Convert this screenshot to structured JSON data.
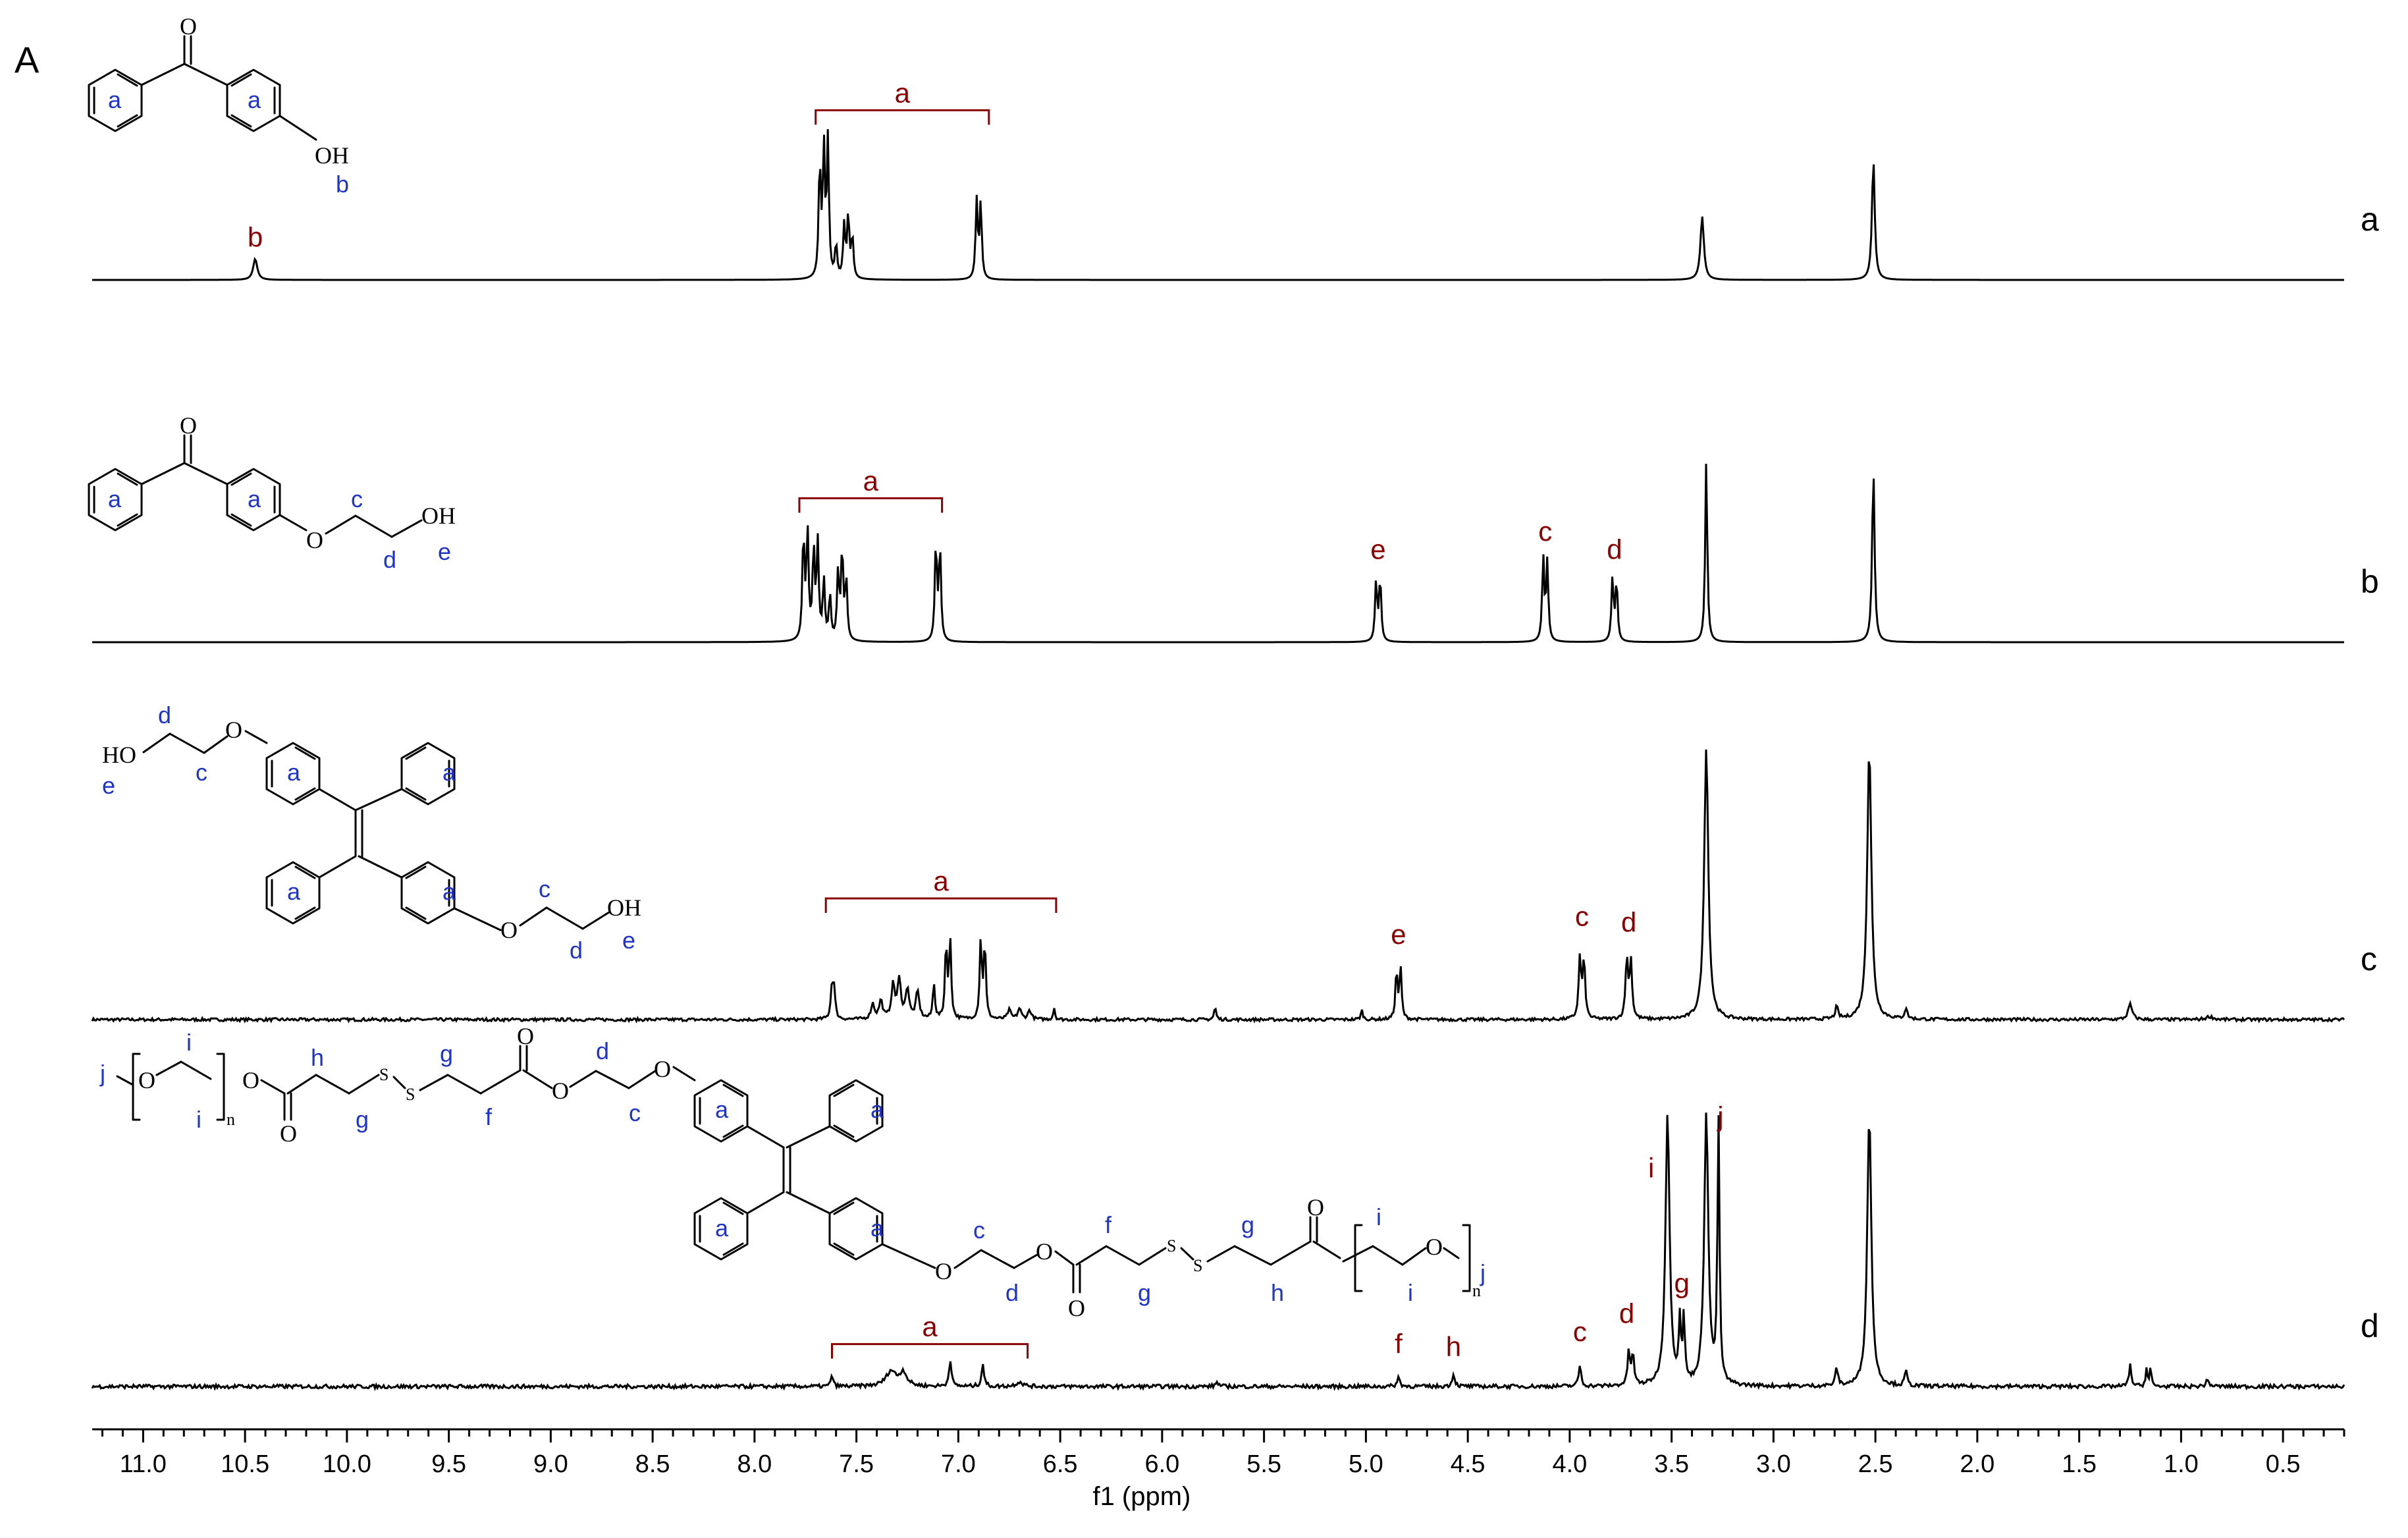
{
  "figure": {
    "panel_letter": "A"
  },
  "colors": {
    "peak_label": "#8b0000",
    "structure_label": "#1f35c8",
    "trace": "#000000",
    "axis": "#000000"
  },
  "chart_data": {
    "type": "line",
    "xlabel": "f1 (ppm)",
    "xlim": [
      11.25,
      0.2
    ],
    "x_reversed": true,
    "x_ticks": [
      "11.0",
      "10.5",
      "10.0",
      "9.5",
      "9.0",
      "8.5",
      "8.0",
      "7.5",
      "7.0",
      "6.5",
      "6.0",
      "5.5",
      "5.0",
      "4.5",
      "4.0",
      "3.5",
      "3.0",
      "2.5",
      "2.0",
      "1.5",
      "1.0",
      "0.5"
    ],
    "series": [
      {
        "name": "a",
        "noise": 0.0,
        "peaks": [
          {
            "ppm": 10.45,
            "h": 0.14,
            "w": 0.012
          },
          {
            "ppm": 7.68,
            "h": 0.75,
            "w": 0.006
          },
          {
            "ppm": 7.66,
            "h": 0.85,
            "w": 0.006
          },
          {
            "ppm": 7.64,
            "h": 0.9,
            "w": 0.006
          },
          {
            "ppm": 7.6,
            "h": 0.22,
            "w": 0.006
          },
          {
            "ppm": 7.56,
            "h": 0.35,
            "w": 0.006
          },
          {
            "ppm": 7.54,
            "h": 0.42,
            "w": 0.006
          },
          {
            "ppm": 7.52,
            "h": 0.28,
            "w": 0.006
          },
          {
            "ppm": 6.91,
            "h": 0.52,
            "w": 0.006
          },
          {
            "ppm": 6.89,
            "h": 0.5,
            "w": 0.006
          },
          {
            "ppm": 3.35,
            "h": 0.42,
            "w": 0.01
          },
          {
            "ppm": 2.51,
            "h": 0.8,
            "w": 0.008
          }
        ],
        "labels": [
          {
            "text": "b",
            "ppm": 10.45,
            "level": 0.22
          },
          {
            "text": "a",
            "ppm": 7.3,
            "level": 1.12,
            "bracket": [
              7.7,
              6.85
            ]
          }
        ]
      },
      {
        "name": "b",
        "noise": 0.0,
        "peaks": [
          {
            "ppm": 7.76,
            "h": 0.7,
            "w": 0.006
          },
          {
            "ppm": 7.74,
            "h": 0.72,
            "w": 0.006
          },
          {
            "ppm": 7.71,
            "h": 0.6,
            "w": 0.006
          },
          {
            "ppm": 7.69,
            "h": 0.64,
            "w": 0.006
          },
          {
            "ppm": 7.66,
            "h": 0.4,
            "w": 0.006
          },
          {
            "ppm": 7.63,
            "h": 0.3,
            "w": 0.006
          },
          {
            "ppm": 7.59,
            "h": 0.45,
            "w": 0.006
          },
          {
            "ppm": 7.57,
            "h": 0.6,
            "w": 0.006
          },
          {
            "ppm": 7.55,
            "h": 0.4,
            "w": 0.006
          },
          {
            "ppm": 7.11,
            "h": 0.65,
            "w": 0.006
          },
          {
            "ppm": 7.09,
            "h": 0.62,
            "w": 0.006
          },
          {
            "ppm": 4.95,
            "h": 0.4,
            "w": 0.006
          },
          {
            "ppm": 4.93,
            "h": 0.42,
            "w": 0.006
          },
          {
            "ppm": 4.13,
            "h": 0.55,
            "w": 0.006
          },
          {
            "ppm": 4.11,
            "h": 0.52,
            "w": 0.006
          },
          {
            "ppm": 3.79,
            "h": 0.42,
            "w": 0.006
          },
          {
            "ppm": 3.77,
            "h": 0.4,
            "w": 0.006
          },
          {
            "ppm": 3.33,
            "h": 1.2,
            "w": 0.006
          },
          {
            "ppm": 2.51,
            "h": 1.15,
            "w": 0.007
          }
        ],
        "labels": [
          {
            "text": "a",
            "ppm": 7.4,
            "level": 0.95,
            "bracket": [
              7.78,
              7.08
            ]
          },
          {
            "text": "e",
            "ppm": 4.94,
            "level": 0.55
          },
          {
            "text": "c",
            "ppm": 4.12,
            "level": 0.67
          },
          {
            "text": "d",
            "ppm": 3.78,
            "level": 0.55
          }
        ]
      },
      {
        "name": "c",
        "noise": 0.02,
        "peaks": [
          {
            "ppm": 7.62,
            "h": 0.2,
            "w": 0.007
          },
          {
            "ppm": 7.61,
            "h": 0.18,
            "w": 0.007
          },
          {
            "ppm": 7.42,
            "h": 0.1,
            "w": 0.01
          },
          {
            "ppm": 7.38,
            "h": 0.12,
            "w": 0.01
          },
          {
            "ppm": 7.32,
            "h": 0.22,
            "w": 0.01
          },
          {
            "ppm": 7.29,
            "h": 0.25,
            "w": 0.01
          },
          {
            "ppm": 7.25,
            "h": 0.2,
            "w": 0.01
          },
          {
            "ppm": 7.2,
            "h": 0.18,
            "w": 0.01
          },
          {
            "ppm": 7.12,
            "h": 0.24,
            "w": 0.006
          },
          {
            "ppm": 7.06,
            "h": 0.5,
            "w": 0.006
          },
          {
            "ppm": 7.04,
            "h": 0.52,
            "w": 0.006
          },
          {
            "ppm": 6.89,
            "h": 0.52,
            "w": 0.006
          },
          {
            "ppm": 6.87,
            "h": 0.5,
            "w": 0.006
          },
          {
            "ppm": 6.75,
            "h": 0.06,
            "w": 0.01
          },
          {
            "ppm": 6.7,
            "h": 0.07,
            "w": 0.01
          },
          {
            "ppm": 6.65,
            "h": 0.06,
            "w": 0.01
          },
          {
            "ppm": 6.53,
            "h": 0.08,
            "w": 0.005
          },
          {
            "ppm": 5.74,
            "h": 0.08,
            "w": 0.006
          },
          {
            "ppm": 5.02,
            "h": 0.06,
            "w": 0.006
          },
          {
            "ppm": 4.85,
            "h": 0.32,
            "w": 0.006
          },
          {
            "ppm": 4.83,
            "h": 0.34,
            "w": 0.006
          },
          {
            "ppm": 3.95,
            "h": 0.4,
            "w": 0.007
          },
          {
            "ppm": 3.93,
            "h": 0.38,
            "w": 0.007
          },
          {
            "ppm": 3.72,
            "h": 0.4,
            "w": 0.007
          },
          {
            "ppm": 3.7,
            "h": 0.38,
            "w": 0.007
          },
          {
            "ppm": 3.33,
            "h": 1.8,
            "w": 0.012
          },
          {
            "ppm": 2.69,
            "h": 0.08,
            "w": 0.008
          },
          {
            "ppm": 2.53,
            "h": 1.8,
            "w": 0.012
          },
          {
            "ppm": 2.35,
            "h": 0.07,
            "w": 0.008
          },
          {
            "ppm": 1.25,
            "h": 0.1,
            "w": 0.012
          },
          {
            "ppm": 0.86,
            "h": 0.02,
            "w": 0.02
          }
        ],
        "labels": [
          {
            "text": "a",
            "ppm": 7.1,
            "level": 0.8,
            "bracket": [
              7.65,
              6.52
            ]
          },
          {
            "text": "e",
            "ppm": 4.84,
            "level": 0.5
          },
          {
            "text": "c",
            "ppm": 3.94,
            "level": 0.62
          },
          {
            "text": "d",
            "ppm": 3.71,
            "level": 0.58
          }
        ]
      },
      {
        "name": "d",
        "noise": 0.025,
        "peaks": [
          {
            "ppm": 7.62,
            "h": 0.08,
            "w": 0.006
          },
          {
            "ppm": 7.33,
            "h": 0.1,
            "w": 0.03
          },
          {
            "ppm": 7.27,
            "h": 0.09,
            "w": 0.02
          },
          {
            "ppm": 7.04,
            "h": 0.18,
            "w": 0.007
          },
          {
            "ppm": 6.88,
            "h": 0.15,
            "w": 0.007
          },
          {
            "ppm": 6.7,
            "h": 0.03,
            "w": 0.02
          },
          {
            "ppm": 5.73,
            "h": 0.03,
            "w": 0.008
          },
          {
            "ppm": 4.84,
            "h": 0.06,
            "w": 0.008
          },
          {
            "ppm": 4.57,
            "h": 0.08,
            "w": 0.008
          },
          {
            "ppm": 3.95,
            "h": 0.14,
            "w": 0.007
          },
          {
            "ppm": 3.71,
            "h": 0.22,
            "w": 0.007
          },
          {
            "ppm": 3.69,
            "h": 0.2,
            "w": 0.007
          },
          {
            "ppm": 3.52,
            "h": 1.8,
            "w": 0.012
          },
          {
            "ppm": 3.46,
            "h": 0.4,
            "w": 0.006
          },
          {
            "ppm": 3.44,
            "h": 0.42,
            "w": 0.006
          },
          {
            "ppm": 3.33,
            "h": 1.8,
            "w": 0.012
          },
          {
            "ppm": 3.27,
            "h": 1.72,
            "w": 0.006
          },
          {
            "ppm": 2.69,
            "h": 0.12,
            "w": 0.007
          },
          {
            "ppm": 2.53,
            "h": 1.8,
            "w": 0.012
          },
          {
            "ppm": 2.35,
            "h": 0.1,
            "w": 0.007
          },
          {
            "ppm": 1.25,
            "h": 0.14,
            "w": 0.007
          },
          {
            "ppm": 1.17,
            "h": 0.12,
            "w": 0.005
          },
          {
            "ppm": 1.15,
            "h": 0.12,
            "w": 0.005
          },
          {
            "ppm": 0.87,
            "h": 0.04,
            "w": 0.01
          }
        ],
        "labels": [
          {
            "text": "a",
            "ppm": 7.14,
            "level": 0.28,
            "bracket": [
              7.62,
              6.66
            ]
          },
          {
            "text": "f",
            "ppm": 4.84,
            "level": 0.22
          },
          {
            "text": "h",
            "ppm": 4.57,
            "level": 0.2
          },
          {
            "text": "c",
            "ppm": 3.95,
            "level": 0.3
          },
          {
            "text": "d",
            "ppm": 3.72,
            "level": 0.42
          },
          {
            "text": "g",
            "ppm": 3.45,
            "level": 0.62
          },
          {
            "text": "i",
            "ppm": 3.6,
            "level": 1.38
          },
          {
            "text": "j",
            "ppm": 3.26,
            "level": 1.72
          }
        ]
      }
    ]
  },
  "structures": {
    "a": {
      "atoms": {
        "o_carbonyl": "O",
        "oh": "OH"
      },
      "blue_labels": {
        "ring1": "a",
        "ring2": "a",
        "oh_label": "b"
      }
    },
    "b": {
      "atoms": {
        "o_carbonyl": "O",
        "o_ether": "O",
        "oh": "OH"
      },
      "blue_labels": {
        "ring1": "a",
        "ring2": "a",
        "c": "c",
        "d": "d",
        "e": "e"
      }
    },
    "c": {
      "atoms": {
        "ho_top": "HO",
        "o_top": "O",
        "o_bottom": "O",
        "oh_bottom": "OH"
      },
      "blue_labels": {
        "d_top": "d",
        "c_top": "c",
        "e_top": "e",
        "ring_tl": "a",
        "ring_tr": "a",
        "ring_bl": "a",
        "ring_br": "a",
        "c_bot": "c",
        "d_bot": "d",
        "e_bot": "e"
      }
    },
    "d": {
      "atoms": {
        "o1": "O",
        "o2": "O",
        "o3": "O",
        "s1": "S",
        "s2": "S",
        "o4": "O",
        "o5": "O",
        "o6": "O",
        "o7": "O",
        "s3": "S",
        "s4": "S",
        "o8": "O",
        "o9": "O",
        "o10": "O",
        "n1": "n",
        "n2": "n"
      },
      "blue_labels": {
        "j_left": "j",
        "i_top": "i",
        "i_bot": "i",
        "h_top": "h",
        "g_top": "g",
        "g_bot": "g",
        "f_bot": "f",
        "d_top": "d",
        "c_bot": "c",
        "ring_tl": "a",
        "ring_tr": "a",
        "ring_bl": "a",
        "ring_br": "a",
        "c_top2": "c",
        "d_bot2": "d",
        "f_top2": "f",
        "g_bot2": "g",
        "g_top2": "g",
        "h_bot2": "h",
        "i_top2": "i",
        "i_bot2": "i",
        "j_right": "j"
      }
    }
  }
}
